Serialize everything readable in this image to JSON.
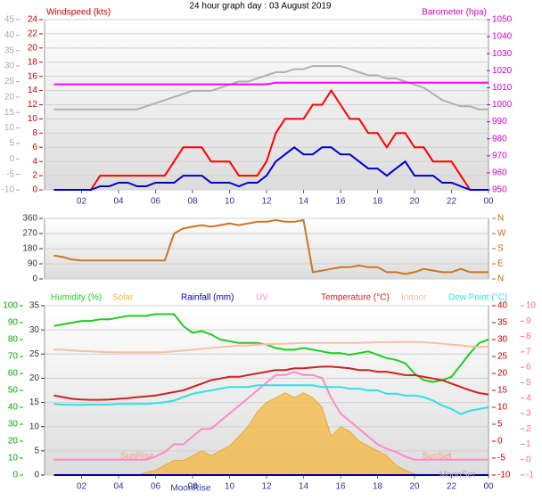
{
  "title": "24 hour graph day : 03 August 2019",
  "chart_data": [
    {
      "type": "line",
      "xlim": [
        0,
        24
      ],
      "xticks": [
        {
          "value": 2,
          "label": "02"
        },
        {
          "value": 4,
          "label": "04"
        },
        {
          "value": 6,
          "label": "06"
        },
        {
          "value": 8,
          "label": "08"
        },
        10,
        12,
        14,
        16,
        18,
        20,
        22,
        {
          "value": 24,
          "label": "00"
        }
      ],
      "x": [
        0.5,
        1,
        1.5,
        2,
        2.5,
        3,
        3.5,
        4,
        4.5,
        5,
        5.5,
        6,
        6.5,
        7,
        7.5,
        8,
        8.5,
        9,
        9.5,
        10,
        10.5,
        11,
        11.5,
        12,
        12.5,
        13,
        13.5,
        14,
        14.5,
        15,
        15.5,
        16,
        16.5,
        17,
        17.5,
        18,
        18.5,
        19,
        19.5,
        20,
        20.5,
        21,
        21.5,
        22,
        22.5,
        23,
        23.5,
        24
      ],
      "axes": [
        {
          "lim": [
            -10,
            45
          ],
          "ticks": [
            -10,
            -5,
            0,
            5,
            10,
            15,
            20,
            25,
            30,
            35,
            40,
            45
          ],
          "color": "#aaaaaa"
        },
        {
          "name": "Windspeed (kts)",
          "lim": [
            0,
            24
          ],
          "ticks": [
            0,
            2,
            4,
            6,
            8,
            10,
            12,
            14,
            16,
            18,
            20,
            22,
            24
          ],
          "color": "#cc0000",
          "grid": true
        },
        {
          "name": "Barometer (hpa)",
          "lim": [
            950,
            1050
          ],
          "ticks": [
            950,
            960,
            970,
            980,
            990,
            1000,
            1010,
            1020,
            1030,
            1040,
            1050
          ],
          "color": "#cc00cc"
        }
      ],
      "series": [
        {
          "color": "#b0b0b0",
          "axis": 0,
          "values": [
            16,
            16,
            16,
            16,
            16,
            16,
            16,
            16,
            16,
            16,
            17,
            18,
            19,
            20,
            21,
            22,
            22,
            22,
            23,
            24,
            25,
            25,
            26,
            27,
            28,
            28,
            29,
            29,
            30,
            30,
            30,
            30,
            29,
            28,
            27,
            27,
            26,
            26,
            25,
            24,
            23,
            21,
            19,
            18,
            17,
            17,
            16,
            16
          ]
        },
        {
          "color": "#ff00ff",
          "axis": 2,
          "values": [
            1012,
            1012,
            1012,
            1012,
            1012,
            1012,
            1012,
            1012,
            1012,
            1012,
            1012,
            1012,
            1012,
            1012,
            1012,
            1012,
            1012,
            1012,
            1012,
            1012,
            1012,
            1012,
            1012,
            1012,
            1013,
            1013,
            1013,
            1013,
            1013,
            1013,
            1013,
            1013,
            1013,
            1013,
            1013,
            1013,
            1013,
            1013,
            1013,
            1013,
            1013,
            1013,
            1013,
            1013,
            1013,
            1013,
            1013,
            1013
          ]
        },
        {
          "color": "#ff0000",
          "axis": 1,
          "values": [
            0,
            0,
            0,
            0,
            0,
            2,
            2,
            2,
            2,
            2,
            2,
            2,
            2,
            4,
            6,
            6,
            6,
            4,
            4,
            4,
            2,
            2,
            2,
            4,
            8,
            10,
            10,
            10,
            12,
            12,
            14,
            12,
            10,
            10,
            8,
            8,
            6,
            8,
            8,
            6,
            6,
            4,
            4,
            4,
            2,
            0,
            0,
            0
          ]
        },
        {
          "color": "#0000cc",
          "axis": 1,
          "values": [
            0,
            0,
            0,
            0,
            0,
            0.5,
            0.5,
            1,
            1,
            0.5,
            0.5,
            1,
            1,
            1,
            2,
            2,
            2,
            1,
            1,
            1,
            0.5,
            1,
            1,
            2,
            4,
            5,
            6,
            5,
            5,
            6,
            6,
            5,
            5,
            4,
            3,
            3,
            2,
            3,
            4,
            2,
            2,
            2,
            1,
            1,
            0.5,
            0,
            0,
            0
          ]
        }
      ]
    },
    {
      "type": "line",
      "xlim": [
        0,
        24
      ],
      "x": [
        0.5,
        1,
        1.5,
        2,
        2.5,
        3,
        3.5,
        4,
        4.5,
        5,
        5.5,
        6,
        6.5,
        7,
        7.5,
        8,
        8.5,
        9,
        9.5,
        10,
        10.5,
        11,
        11.5,
        12,
        12.5,
        13,
        13.5,
        14,
        14.5,
        15,
        15.5,
        16,
        16.5,
        17,
        17.5,
        18,
        18.5,
        19,
        19.5,
        20,
        20.5,
        21,
        21.5,
        22,
        22.5,
        23,
        23.5,
        24
      ],
      "axes": [
        {
          "lim": [
            0,
            360
          ],
          "ticks": [
            0,
            90,
            180,
            270,
            360
          ],
          "color": "#333333",
          "grid": true
        },
        {
          "lim": [
            0,
            360
          ],
          "ticks": [
            {
              "value": 0,
              "label": "N"
            },
            {
              "value": 90,
              "label": "E"
            },
            {
              "value": 180,
              "label": "S"
            },
            {
              "value": 270,
              "label": "W"
            },
            {
              "value": 360,
              "label": "N"
            }
          ],
          "color": "#cc6600"
        }
      ],
      "series": [
        {
          "color": "#cc7722",
          "axis": 0,
          "values": [
            140,
            130,
            115,
            110,
            110,
            110,
            110,
            110,
            110,
            110,
            110,
            110,
            110,
            270,
            300,
            310,
            320,
            310,
            320,
            330,
            320,
            330,
            340,
            340,
            350,
            340,
            340,
            350,
            40,
            50,
            60,
            70,
            70,
            80,
            70,
            70,
            40,
            40,
            30,
            40,
            60,
            50,
            40,
            40,
            60,
            40,
            40,
            40
          ]
        }
      ]
    },
    {
      "type": "line",
      "xlim": [
        0,
        24
      ],
      "xticks": [
        {
          "value": 2,
          "label": "02"
        },
        {
          "value": 4,
          "label": "04"
        },
        {
          "value": 6,
          "label": "06"
        },
        {
          "value": 8,
          "label": "08"
        },
        10,
        12,
        14,
        16,
        18,
        20,
        22,
        {
          "value": 24,
          "label": "00"
        }
      ],
      "x": [
        0.5,
        1,
        1.5,
        2,
        2.5,
        3,
        3.5,
        4,
        4.5,
        5,
        5.5,
        6,
        6.5,
        7,
        7.5,
        8,
        8.5,
        9,
        9.5,
        10,
        10.5,
        11,
        11.5,
        12,
        12.5,
        13,
        13.5,
        14,
        14.5,
        15,
        15.5,
        16,
        16.5,
        17,
        17.5,
        18,
        18.5,
        19,
        19.5,
        20,
        20.5,
        21,
        21.5,
        22,
        22.5,
        23,
        23.5,
        24
      ],
      "axes": [
        {
          "lim": [
            0,
            100
          ],
          "ticks": [
            0,
            10,
            20,
            30,
            40,
            50,
            60,
            70,
            80,
            90,
            100
          ],
          "color": "#00aa00"
        },
        {
          "lim": [
            0,
            35
          ],
          "ticks": [
            0,
            5,
            10,
            15,
            20,
            25,
            30,
            35
          ],
          "color": "#333333",
          "grid": true
        },
        {
          "lim": [
            -10,
            40
          ],
          "ticks": [
            -10,
            -5,
            0,
            5,
            10,
            15,
            20,
            25,
            30,
            35,
            40
          ],
          "color": "#cc0000"
        },
        {
          "lim": [
            -1,
            10
          ],
          "ticks": [
            -1,
            0,
            1,
            2,
            3,
            4,
            5,
            6,
            7,
            8,
            9,
            10
          ],
          "color": "#ff66aa"
        }
      ],
      "series": [
        {
          "name": "Humidity (%)",
          "color": "#22cc22",
          "axis": 0,
          "values": [
            88,
            89,
            90,
            91,
            91,
            92,
            92,
            93,
            94,
            94,
            94,
            95,
            95,
            95,
            88,
            84,
            85,
            83,
            80,
            79,
            78,
            78,
            78,
            77,
            75,
            74,
            74,
            75,
            74,
            73,
            72,
            72,
            71,
            72,
            73,
            71,
            69,
            68,
            66,
            60,
            56,
            55,
            56,
            58,
            65,
            72,
            78,
            80
          ]
        },
        {
          "name": "Solar",
          "color": "#f5b840",
          "axis": 1,
          "area": true,
          "values": [
            0,
            0,
            0,
            0,
            0,
            0,
            0,
            0,
            0,
            0,
            0.5,
            1,
            2,
            3,
            3,
            4,
            5,
            4,
            5,
            6,
            8,
            10,
            13,
            15,
            16,
            17,
            16,
            17,
            16,
            14,
            8,
            10,
            9,
            7,
            6,
            5,
            4,
            2,
            1,
            0.2,
            0,
            0,
            0,
            0,
            0,
            0,
            0,
            0
          ]
        },
        {
          "name": "Rainfall (mm)",
          "color": "#000099",
          "axis": 1,
          "values": [
            0,
            0,
            0,
            0,
            0,
            0,
            0,
            0,
            0,
            0,
            0,
            0,
            0,
            0,
            0,
            0,
            0,
            0,
            0,
            0,
            0,
            0,
            0,
            0,
            0,
            0,
            0,
            0,
            0,
            0,
            0,
            0,
            0,
            0,
            0,
            0,
            0,
            0,
            0,
            0,
            0,
            0,
            0,
            0,
            0,
            0,
            0,
            0
          ]
        },
        {
          "name": "UV",
          "color": "#ff88cc",
          "axis": 3,
          "values": [
            0,
            0,
            0,
            0,
            0,
            0,
            0,
            0,
            0,
            0,
            0,
            0.2,
            0.5,
            1,
            1,
            1.5,
            2,
            2,
            2.5,
            3,
            3.5,
            4,
            4.5,
            5,
            5.5,
            5.5,
            5.7,
            5.5,
            5.5,
            5.3,
            4,
            3,
            2.5,
            2,
            1.5,
            1,
            0.7,
            0.5,
            0.2,
            0,
            0,
            0,
            0,
            0,
            0,
            0,
            0,
            0
          ]
        },
        {
          "name": "Temperature (°C)",
          "color": "#cc2222",
          "axis": 2,
          "values": [
            13.5,
            13,
            12.5,
            12.3,
            12.2,
            12.2,
            12.3,
            12.5,
            12.7,
            13,
            13.2,
            13.5,
            14,
            14.5,
            15,
            16,
            17,
            18,
            18.5,
            19,
            19,
            19.5,
            20,
            20.5,
            21,
            21,
            21.5,
            21.5,
            21.8,
            22,
            22,
            21.8,
            21.5,
            21,
            21,
            20.5,
            20.5,
            20,
            19.5,
            19.5,
            19,
            18.5,
            18,
            17,
            16,
            15,
            14.2,
            13.8
          ]
        },
        {
          "name": "Indoor",
          "color": "#f5c0a0",
          "axis": 2,
          "values": [
            27,
            27,
            26.8,
            26.6,
            26.5,
            26.4,
            26.3,
            26.2,
            26.2,
            26.2,
            26.2,
            26.2,
            26.3,
            26.5,
            26.8,
            27,
            27.3,
            27.5,
            27.8,
            28,
            28.2,
            28.3,
            28.5,
            28.6,
            28.7,
            28.8,
            28.9,
            29,
            29,
            29,
            29,
            29,
            29,
            29,
            29.1,
            29.2,
            29.2,
            29.3,
            29.3,
            29.3,
            29.2,
            29,
            28.8,
            28.5,
            28.3,
            28,
            27.8,
            28
          ]
        },
        {
          "name": "Dew Point (°C)",
          "color": "#33e0e0",
          "axis": 2,
          "values": [
            11,
            10.8,
            10.7,
            10.7,
            10.8,
            10.8,
            10.8,
            11,
            11,
            11,
            11,
            11.2,
            11.5,
            12,
            13,
            14,
            14.5,
            15,
            15.5,
            16,
            16,
            16,
            16.5,
            16.5,
            16.5,
            16.5,
            16.5,
            16.5,
            16.5,
            16,
            16,
            16,
            15.5,
            15.5,
            15,
            15,
            14,
            14,
            13.5,
            13.5,
            13,
            12,
            10.5,
            9.5,
            8,
            9,
            9.5,
            10
          ]
        }
      ],
      "annotations": [
        {
          "text": "SunRise",
          "x": 5.0,
          "color": "#f0a080"
        },
        {
          "text": "SunSet",
          "x": 21.2,
          "color": "#f0a080"
        },
        {
          "text": "MoonSet",
          "x": 22.3,
          "color": "#aaaaaa"
        },
        {
          "text": "MoonRise",
          "x": 7.9,
          "color": "#333399"
        }
      ]
    }
  ]
}
